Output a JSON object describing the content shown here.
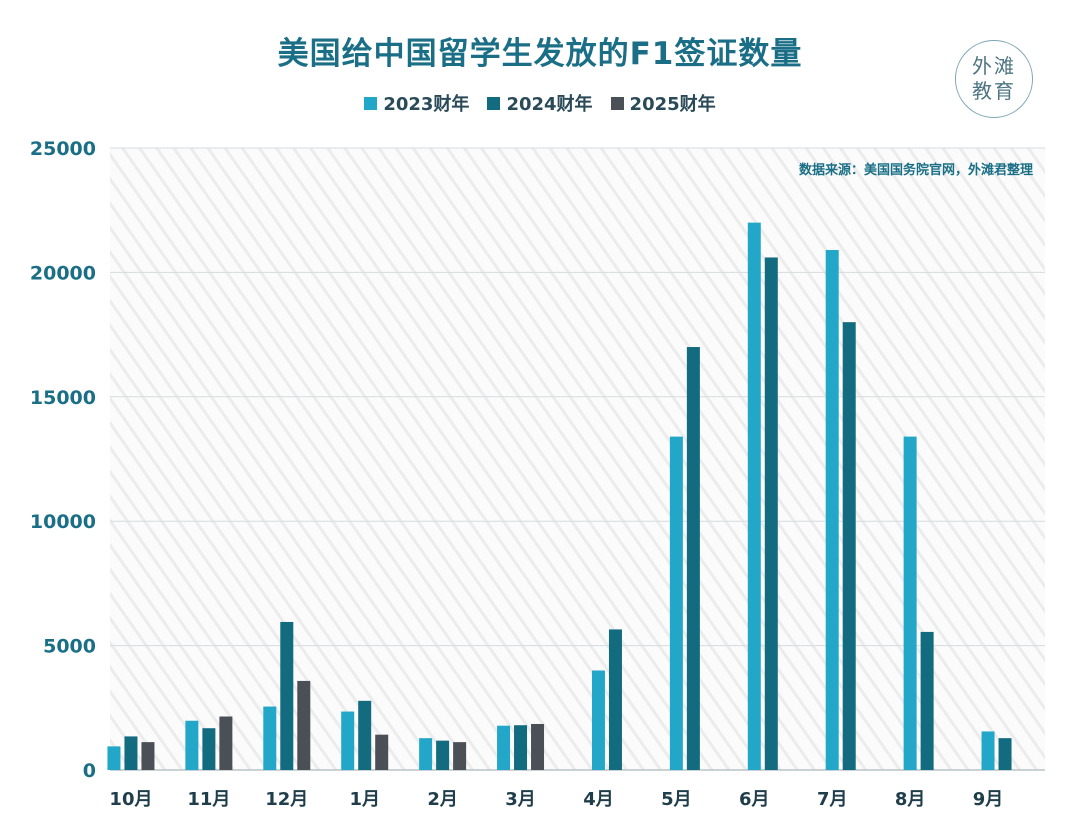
{
  "header": {
    "title": "美国给中国留学生发放的F1签证数量"
  },
  "logo": {
    "line1": "外滩",
    "line2": "教育"
  },
  "source_note": "数据来源：美国国务院官网，外滩君整理",
  "colors": {
    "fy2023": "#23a7c9",
    "fy2024": "#136b80",
    "fy2025": "#4b4f56",
    "title": "#1a6f86"
  },
  "chart_data": {
    "type": "bar",
    "title": "美国给中国留学生发放的F1签证数量",
    "categories": [
      "10月",
      "11月",
      "12月",
      "1月",
      "2月",
      "3月",
      "4月",
      "5月",
      "6月",
      "7月",
      "8月",
      "9月"
    ],
    "series": [
      {
        "name": "2023财年",
        "values": [
          950,
          1980,
          2550,
          2350,
          1280,
          1780,
          4000,
          13400,
          22000,
          20900,
          13400,
          1550
        ]
      },
      {
        "name": "2024财年",
        "values": [
          1350,
          1680,
          5950,
          2780,
          1180,
          1800,
          5650,
          17000,
          20600,
          18000,
          5550,
          1280
        ]
      },
      {
        "name": "2025财年",
        "values": [
          1120,
          2150,
          3580,
          1420,
          1120,
          1850,
          null,
          null,
          null,
          null,
          null,
          null
        ]
      }
    ],
    "yticks": [
      0,
      5000,
      10000,
      15000,
      20000,
      25000
    ],
    "ylim": [
      0,
      25000
    ],
    "xlabel": "",
    "ylabel": "",
    "grid": true,
    "legend_position": "top"
  }
}
